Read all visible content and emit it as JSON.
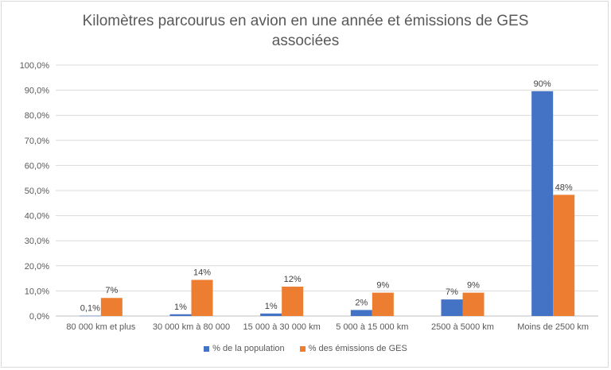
{
  "chart_data": {
    "type": "bar",
    "title": "Kilomètres parcourus en avion en une année et émissions de GES\nassociées",
    "categories": [
      "80 000 km et plus",
      "30 000 km à 80 000",
      "15 000 à 30 000 km",
      "5 000 à 15 000 km",
      "2500 à 5000 km",
      "Moins de 2500 km"
    ],
    "series": [
      {
        "name": "% de la population",
        "color": "#4472c4",
        "values": [
          0.1,
          0.7,
          1.0,
          2.4,
          6.6,
          89.6
        ],
        "labels": [
          "0,1%",
          "1%",
          "1%",
          "2%",
          "7%",
          "90%"
        ]
      },
      {
        "name": "% des émissions de GES",
        "color": "#ed7d31",
        "values": [
          7.2,
          14.4,
          11.7,
          9.3,
          9.3,
          48.3
        ],
        "labels": [
          "7%",
          "14%",
          "12%",
          "9%",
          "9%",
          "48%"
        ]
      }
    ],
    "yticks": [
      "0,0%",
      "10,0%",
      "20,0%",
      "30,0%",
      "40,0%",
      "50,0%",
      "60,0%",
      "70,0%",
      "80,0%",
      "90,0%",
      "100,0%"
    ],
    "ylim": [
      0,
      100
    ],
    "grid": true,
    "legend_position": "bottom"
  }
}
